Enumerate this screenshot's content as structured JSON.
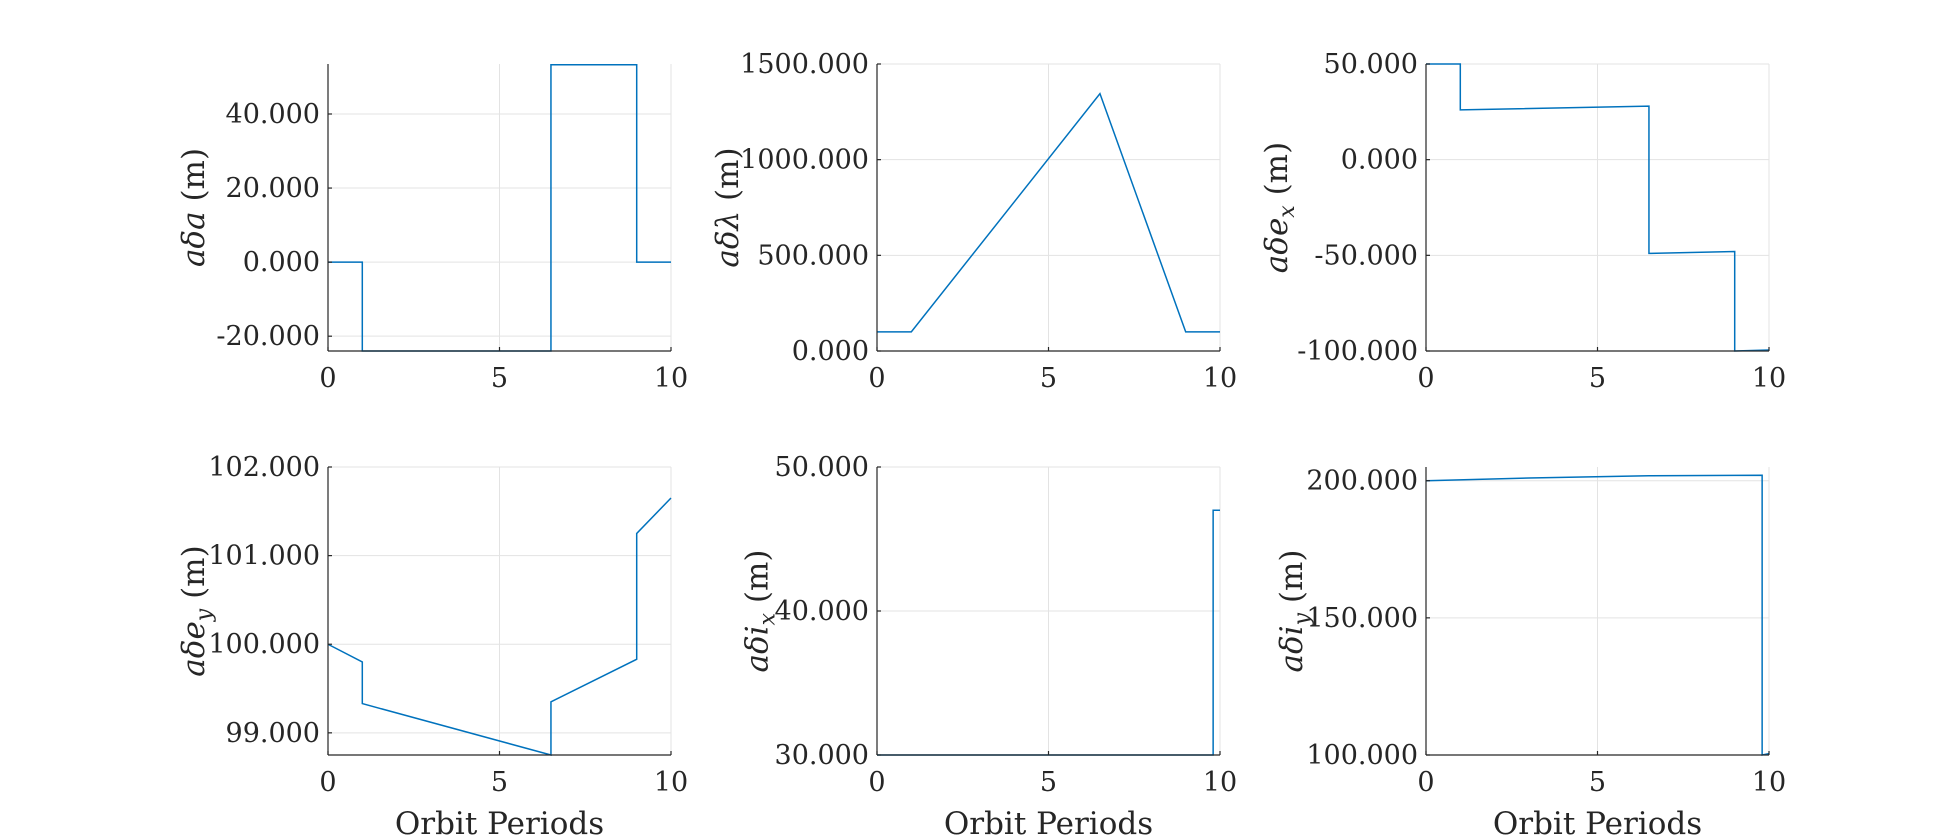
{
  "colors": {
    "series": "#0072BD",
    "axis": "#262626",
    "grid": "#e3e3e3"
  },
  "chart_data": [
    {
      "type": "line",
      "ylabel": "aδa (m)",
      "xlabel": "",
      "xlim": [
        0,
        10
      ],
      "ylim": [
        -24,
        53.5
      ],
      "xticks": [
        0,
        5,
        10
      ],
      "xtick_labels": [
        "0",
        "5",
        "10"
      ],
      "yticks": [
        -20,
        0,
        20,
        40
      ],
      "ytick_labels": [
        "-20.000",
        "0.000",
        "20.000",
        "40.000"
      ],
      "grid": true,
      "series": [
        {
          "x": [
            0,
            1,
            1,
            6.5,
            6.5,
            9,
            9,
            10
          ],
          "y": [
            0,
            0,
            -24,
            -24,
            53.3,
            53.3,
            0,
            0
          ]
        }
      ]
    },
    {
      "type": "line",
      "ylabel": "aδλ (m)",
      "xlabel": "",
      "xlim": [
        0,
        10
      ],
      "ylim": [
        0,
        1500
      ],
      "xticks": [
        0,
        5,
        10
      ],
      "xtick_labels": [
        "0",
        "5",
        "10"
      ],
      "yticks": [
        0,
        500,
        1000,
        1500
      ],
      "ytick_labels": [
        "0.000",
        "500.000",
        "1000.000",
        "1500.000"
      ],
      "grid": true,
      "series": [
        {
          "x": [
            0,
            1,
            6.5,
            9,
            10
          ],
          "y": [
            100,
            100,
            1345,
            100,
            100
          ]
        }
      ]
    },
    {
      "type": "line",
      "ylabel": "aδe_x (m)",
      "xlabel": "",
      "xlim": [
        0,
        10
      ],
      "ylim": [
        -100,
        50
      ],
      "xticks": [
        0,
        5,
        10
      ],
      "xtick_labels": [
        "0",
        "5",
        "10"
      ],
      "yticks": [
        -100,
        -50,
        0,
        50
      ],
      "ytick_labels": [
        "-100.000",
        "-50.000",
        "0.000",
        "50.000"
      ],
      "grid": true,
      "series": [
        {
          "x": [
            0,
            1,
            1,
            6.5,
            6.5,
            9,
            9,
            10
          ],
          "y": [
            50,
            50,
            26,
            28,
            -49,
            -48,
            -100,
            -99.5
          ]
        }
      ]
    },
    {
      "type": "line",
      "ylabel": "aδe_y (m)",
      "xlabel": "Orbit Periods",
      "xlim": [
        0,
        10
      ],
      "ylim": [
        98.75,
        102
      ],
      "xticks": [
        0,
        5,
        10
      ],
      "xtick_labels": [
        "0",
        "5",
        "10"
      ],
      "yticks": [
        99,
        100,
        101,
        102
      ],
      "ytick_labels": [
        "99.000",
        "100.000",
        "101.000",
        "102.000"
      ],
      "grid": true,
      "series": [
        {
          "x": [
            0,
            1,
            1,
            6.5,
            6.5,
            9,
            9,
            10
          ],
          "y": [
            100.0,
            99.8,
            99.33,
            98.75,
            99.35,
            99.83,
            101.25,
            101.65
          ]
        }
      ]
    },
    {
      "type": "line",
      "ylabel": "aδi_x (m)",
      "xlabel": "Orbit Periods",
      "xlim": [
        0,
        10
      ],
      "ylim": [
        30,
        50
      ],
      "xticks": [
        0,
        5,
        10
      ],
      "xtick_labels": [
        "0",
        "5",
        "10"
      ],
      "yticks": [
        30,
        40,
        50
      ],
      "ytick_labels": [
        "30.000",
        "40.000",
        "50.000"
      ],
      "grid": true,
      "series": [
        {
          "x": [
            0,
            9.8,
            9.8,
            10
          ],
          "y": [
            30,
            30,
            47,
            47
          ]
        }
      ]
    },
    {
      "type": "line",
      "ylabel": "aδi_y (m)",
      "xlabel": "Orbit Periods",
      "xlim": [
        0,
        10
      ],
      "ylim": [
        100,
        205
      ],
      "xticks": [
        0,
        5,
        10
      ],
      "xtick_labels": [
        "0",
        "5",
        "10"
      ],
      "yticks": [
        100,
        150,
        200
      ],
      "ytick_labels": [
        "100.000",
        "150.000",
        "200.000"
      ],
      "grid": true,
      "series": [
        {
          "x": [
            0,
            3,
            6.5,
            9.8,
            9.8,
            10
          ],
          "y": [
            200,
            201,
            201.8,
            202,
            100,
            100.5
          ]
        }
      ]
    }
  ]
}
